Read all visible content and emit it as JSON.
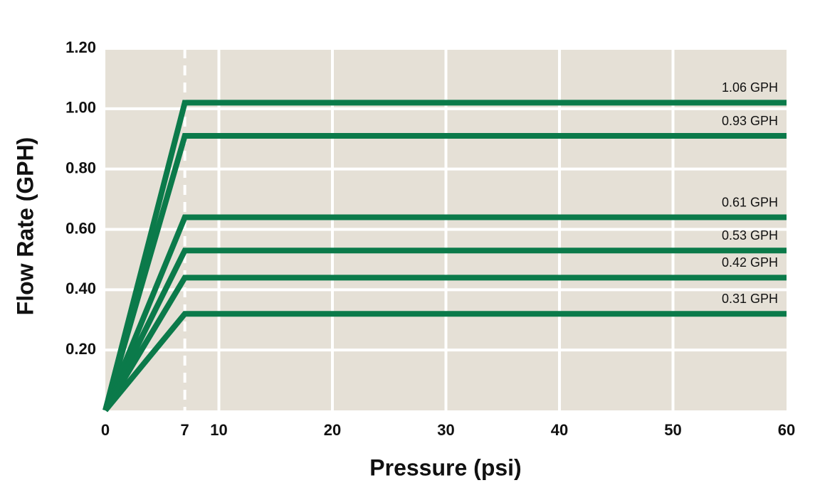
{
  "chart_data": {
    "type": "line",
    "x_label": "Pressure (psi)",
    "y_label": "Flow Rate (GPH)",
    "x": [
      0,
      7,
      60
    ],
    "series": [
      {
        "name": "1.06 GPH",
        "color": "#0b7a4a",
        "values": [
          0,
          1.02,
          1.02
        ]
      },
      {
        "name": "0.93 GPH",
        "color": "#0b7a4a",
        "values": [
          0,
          0.91,
          0.91
        ]
      },
      {
        "name": "0.61 GPH",
        "color": "#0b7a4a",
        "values": [
          0,
          0.64,
          0.64
        ]
      },
      {
        "name": "0.53 GPH",
        "color": "#0b7a4a",
        "values": [
          0,
          0.53,
          0.53
        ]
      },
      {
        "name": "0.42 GPH",
        "color": "#0b7a4a",
        "values": [
          0,
          0.44,
          0.44
        ]
      },
      {
        "name": "0.31 GPH",
        "color": "#0b7a4a",
        "values": [
          0,
          0.32,
          0.32
        ]
      }
    ],
    "xlim": [
      0,
      60
    ],
    "xticks": [
      0,
      7,
      10,
      20,
      30,
      40,
      50,
      60
    ],
    "dashed_xtick": 7,
    "ylim": [
      0,
      1.2
    ],
    "yticks": [
      {
        "value": 0.2,
        "label": "0.20"
      },
      {
        "value": 0.4,
        "label": "0.40"
      },
      {
        "value": 0.6,
        "label": "0.60"
      },
      {
        "value": 0.8,
        "label": "0.80"
      },
      {
        "value": 1.0,
        "label": "1.00"
      },
      {
        "value": 1.2,
        "label": "1.20"
      }
    ],
    "grid": true,
    "background": "#e5e0d6"
  }
}
